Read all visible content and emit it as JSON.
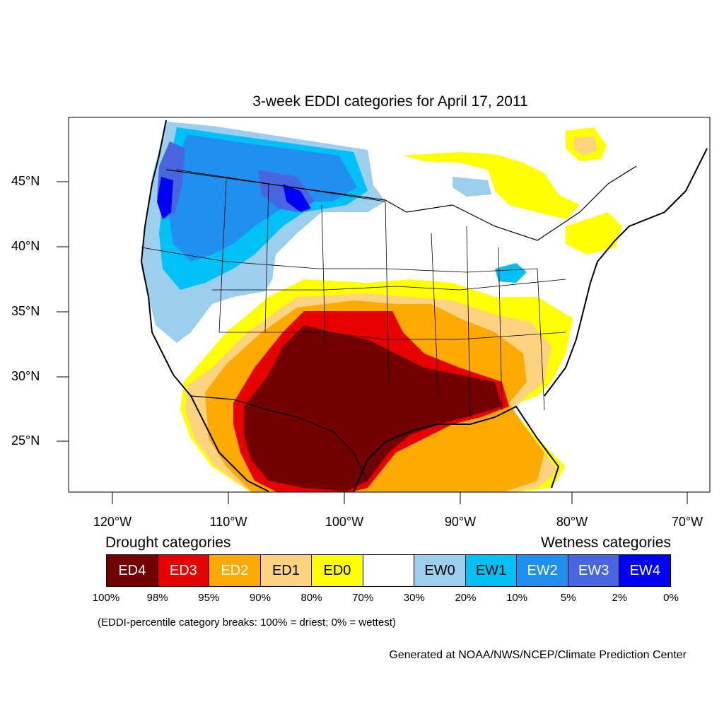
{
  "title": "3-week EDDI categories for April 17, 2011",
  "latitude_labels": [
    "45°N",
    "40°N",
    "35°N",
    "30°N",
    "25°N"
  ],
  "longitude_labels": [
    "120°W",
    "110°W",
    "100°W",
    "90°W",
    "80°W",
    "70°W"
  ],
  "legend": {
    "drought_heading": "Drought categories",
    "wetness_heading": "Wetness categories",
    "categories": [
      {
        "label": "ED4",
        "color": "#730000",
        "text_color": "#ffffff"
      },
      {
        "label": "ED3",
        "color": "#e60000",
        "text_color": "#ffffff"
      },
      {
        "label": "ED2",
        "color": "#ffaa00",
        "text_color": "#ffffff"
      },
      {
        "label": "ED1",
        "color": "#fcd37f",
        "text_color": "#000000"
      },
      {
        "label": "ED0",
        "color": "#ffff00",
        "text_color": "#000000"
      },
      {
        "label": "",
        "color": "#ffffff",
        "text_color": "#000000"
      },
      {
        "label": "EW0",
        "color": "#9ccfee",
        "text_color": "#000000"
      },
      {
        "label": "EW1",
        "color": "#00c0f5",
        "text_color": "#000000"
      },
      {
        "label": "EW2",
        "color": "#1f8ff0",
        "text_color": "#ffffff"
      },
      {
        "label": "EW3",
        "color": "#4866e0",
        "text_color": "#ffffff"
      },
      {
        "label": "EW4",
        "color": "#0000f5",
        "text_color": "#ffffff"
      }
    ],
    "breaks": [
      "100%",
      "98%",
      "95%",
      "90%",
      "80%",
      "70%",
      "30%",
      "20%",
      "10%",
      "5%",
      "2%",
      "0%"
    ]
  },
  "note": "(EDDI-percentile category breaks: 100% = driest; 0% = wettest)",
  "credit": "Generated at NOAA/NWS/NCEP/Climate Prediction Center"
}
